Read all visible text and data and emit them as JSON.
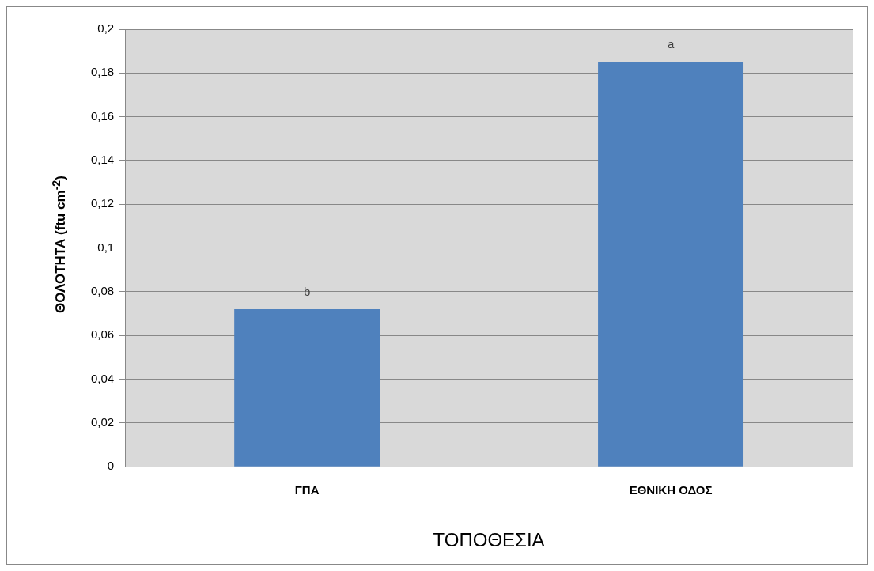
{
  "chart_data": {
    "type": "bar",
    "xlabel": "ΤΟΠΟΘΕΣΙΑ",
    "ylabel": "ΘΟΛΟΤΗΤΑ (ftu cm$^{-2}$)",
    "categories": [
      "ΓΠΑ",
      "ΕΘΝΙΚΗ ΟΔΟΣ"
    ],
    "values": [
      0.072,
      0.185
    ],
    "color": "#4f81bd",
    "ylim": [
      0,
      0.2
    ],
    "yticks": [
      0,
      {
        "value": 0.02,
        "label": "0,02"
      },
      {
        "value": 0.04,
        "label": "0,04"
      },
      {
        "value": 0.06,
        "label": "0,06"
      },
      {
        "value": 0.08,
        "label": "0,08"
      },
      {
        "value": 0.1,
        "label": "0,1"
      },
      {
        "value": 0.12,
        "label": "0,12"
      },
      {
        "value": 0.14,
        "label": "0,14"
      },
      {
        "value": 0.16,
        "label": "0,16"
      },
      {
        "value": 0.18,
        "label": "0,18"
      },
      {
        "value": 0.2,
        "label": "0,2"
      }
    ],
    "grid": "y",
    "legend": false,
    "annotations": [
      {
        "text": "b",
        "x": "ΓΠΑ",
        "y": 0.072
      },
      {
        "text": "a",
        "x": "ΕΘΝΙΚΗ ΟΔΟΣ",
        "y": 0.185
      }
    ]
  }
}
